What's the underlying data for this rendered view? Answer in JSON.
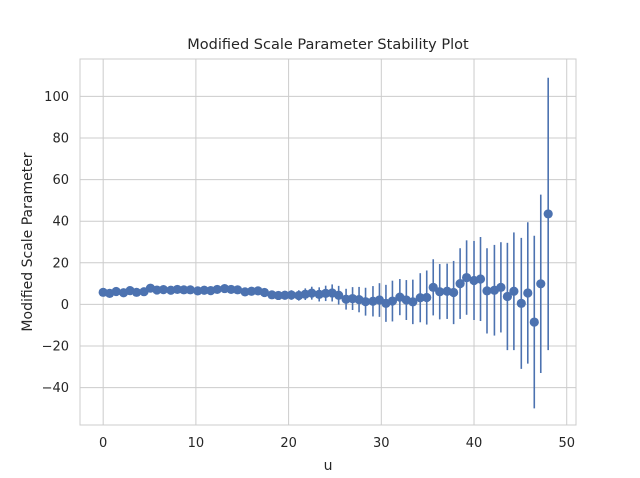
{
  "chart_data": {
    "type": "scatter",
    "title": "Modified Scale Parameter Stability Plot",
    "xlabel": "u",
    "ylabel": "Modified Scale Parameter",
    "xlim": [
      -2.5,
      51
    ],
    "ylim": [
      -58,
      118
    ],
    "x_ticks": [
      0,
      10,
      20,
      30,
      40,
      50
    ],
    "y_ticks": [
      -40,
      -20,
      0,
      20,
      40,
      60,
      80,
      100
    ],
    "grid": true,
    "legend": "none",
    "style": {
      "point_color": "#4c72b0",
      "error_bar_color": "#4c72b0",
      "grid_color": "#cccccc",
      "spine_color": "#cccccc"
    },
    "series": [
      {
        "points": [
          {
            "x": 0.0,
            "y": 5.8,
            "low": 5.4,
            "high": 6.2
          },
          {
            "x": 0.7,
            "y": 5.3,
            "low": 4.9,
            "high": 5.7
          },
          {
            "x": 1.4,
            "y": 6.2,
            "low": 5.7,
            "high": 6.7
          },
          {
            "x": 2.2,
            "y": 5.6,
            "low": 5.1,
            "high": 6.1
          },
          {
            "x": 2.9,
            "y": 6.6,
            "low": 6.1,
            "high": 7.1
          },
          {
            "x": 3.6,
            "y": 5.8,
            "low": 5.3,
            "high": 6.3
          },
          {
            "x": 4.4,
            "y": 6.1,
            "low": 5.6,
            "high": 6.6
          },
          {
            "x": 5.1,
            "y": 7.8,
            "low": 7.2,
            "high": 8.4
          },
          {
            "x": 5.8,
            "y": 6.9,
            "low": 6.3,
            "high": 7.5
          },
          {
            "x": 6.5,
            "y": 7.1,
            "low": 6.5,
            "high": 7.7
          },
          {
            "x": 7.3,
            "y": 6.8,
            "low": 6.1,
            "high": 7.5
          },
          {
            "x": 8.0,
            "y": 7.2,
            "low": 6.5,
            "high": 7.9
          },
          {
            "x": 8.7,
            "y": 7.0,
            "low": 6.3,
            "high": 7.7
          },
          {
            "x": 9.4,
            "y": 7.0,
            "low": 6.2,
            "high": 7.8
          },
          {
            "x": 10.2,
            "y": 6.5,
            "low": 5.7,
            "high": 7.3
          },
          {
            "x": 10.9,
            "y": 6.8,
            "low": 5.9,
            "high": 7.7
          },
          {
            "x": 11.6,
            "y": 6.6,
            "low": 5.7,
            "high": 7.5
          },
          {
            "x": 12.3,
            "y": 7.2,
            "low": 6.2,
            "high": 8.2
          },
          {
            "x": 13.1,
            "y": 7.6,
            "low": 6.5,
            "high": 8.7
          },
          {
            "x": 13.8,
            "y": 7.2,
            "low": 6.0,
            "high": 8.4
          },
          {
            "x": 14.5,
            "y": 7.0,
            "low": 5.8,
            "high": 8.2
          },
          {
            "x": 15.3,
            "y": 6.0,
            "low": 4.7,
            "high": 7.3
          },
          {
            "x": 16.0,
            "y": 6.3,
            "low": 4.9,
            "high": 7.7
          },
          {
            "x": 16.7,
            "y": 6.5,
            "low": 5.0,
            "high": 8.0
          },
          {
            "x": 17.4,
            "y": 5.7,
            "low": 4.1,
            "high": 7.3
          },
          {
            "x": 18.2,
            "y": 4.6,
            "low": 2.9,
            "high": 6.3
          },
          {
            "x": 18.9,
            "y": 4.3,
            "low": 2.4,
            "high": 6.2
          },
          {
            "x": 19.6,
            "y": 4.4,
            "low": 2.3,
            "high": 6.5
          },
          {
            "x": 20.3,
            "y": 4.5,
            "low": 2.2,
            "high": 6.8
          },
          {
            "x": 21.1,
            "y": 4.3,
            "low": 1.8,
            "high": 6.8
          },
          {
            "x": 21.8,
            "y": 4.9,
            "low": 2.1,
            "high": 7.7
          },
          {
            "x": 22.5,
            "y": 5.4,
            "low": 2.3,
            "high": 8.5
          },
          {
            "x": 23.3,
            "y": 4.8,
            "low": 1.4,
            "high": 8.2
          },
          {
            "x": 24.0,
            "y": 5.3,
            "low": 1.6,
            "high": 9.0
          },
          {
            "x": 24.7,
            "y": 5.5,
            "low": 1.4,
            "high": 9.6
          },
          {
            "x": 25.4,
            "y": 4.4,
            "low": -0.1,
            "high": 8.9
          },
          {
            "x": 26.2,
            "y": 2.5,
            "low": -2.5,
            "high": 7.5
          },
          {
            "x": 26.9,
            "y": 2.8,
            "low": -2.7,
            "high": 8.3
          },
          {
            "x": 27.6,
            "y": 2.3,
            "low": -3.8,
            "high": 8.4
          },
          {
            "x": 28.3,
            "y": 1.3,
            "low": -5.4,
            "high": 8.0
          },
          {
            "x": 29.1,
            "y": 1.5,
            "low": -5.8,
            "high": 8.8
          },
          {
            "x": 29.8,
            "y": 2.1,
            "low": -6.0,
            "high": 10.2
          },
          {
            "x": 30.5,
            "y": 0.5,
            "low": -8.4,
            "high": 9.4
          },
          {
            "x": 31.2,
            "y": 1.6,
            "low": -8.2,
            "high": 11.4
          },
          {
            "x": 32.0,
            "y": 3.5,
            "low": -5.2,
            "high": 12.2
          },
          {
            "x": 32.7,
            "y": 2.1,
            "low": -7.5,
            "high": 11.7
          },
          {
            "x": 33.4,
            "y": 1.2,
            "low": -9.5,
            "high": 11.9
          },
          {
            "x": 34.2,
            "y": 3.2,
            "low": -8.6,
            "high": 15.0
          },
          {
            "x": 34.9,
            "y": 3.3,
            "low": -9.7,
            "high": 16.3
          },
          {
            "x": 35.6,
            "y": 8.2,
            "low": -5.3,
            "high": 21.7
          },
          {
            "x": 36.3,
            "y": 6.1,
            "low": -7.2,
            "high": 19.4
          },
          {
            "x": 37.1,
            "y": 6.3,
            "low": -7.0,
            "high": 19.6
          },
          {
            "x": 37.8,
            "y": 5.7,
            "low": -9.5,
            "high": 20.9
          },
          {
            "x": 38.5,
            "y": 10.0,
            "low": -7.0,
            "high": 27.0
          },
          {
            "x": 39.2,
            "y": 12.9,
            "low": -5.0,
            "high": 30.8
          },
          {
            "x": 40.0,
            "y": 11.5,
            "low": -7.5,
            "high": 30.5
          },
          {
            "x": 40.7,
            "y": 12.2,
            "low": -8.0,
            "high": 32.4
          },
          {
            "x": 41.4,
            "y": 6.5,
            "low": -14.0,
            "high": 27.0
          },
          {
            "x": 42.2,
            "y": 6.8,
            "low": -15.0,
            "high": 28.6
          },
          {
            "x": 42.9,
            "y": 8.2,
            "low": -13.5,
            "high": 29.9
          },
          {
            "x": 43.6,
            "y": 3.8,
            "low": -22.0,
            "high": 29.6
          },
          {
            "x": 44.3,
            "y": 6.3,
            "low": -22.0,
            "high": 34.6
          },
          {
            "x": 45.1,
            "y": 0.5,
            "low": -31.0,
            "high": 32.0
          },
          {
            "x": 45.8,
            "y": 5.5,
            "low": -28.5,
            "high": 39.5
          },
          {
            "x": 46.5,
            "y": -8.5,
            "low": -50.0,
            "high": 33.0
          },
          {
            "x": 47.2,
            "y": 9.9,
            "low": -33.0,
            "high": 52.8
          },
          {
            "x": 48.0,
            "y": 43.5,
            "low": -22.0,
            "high": 109.0
          }
        ]
      }
    ]
  }
}
